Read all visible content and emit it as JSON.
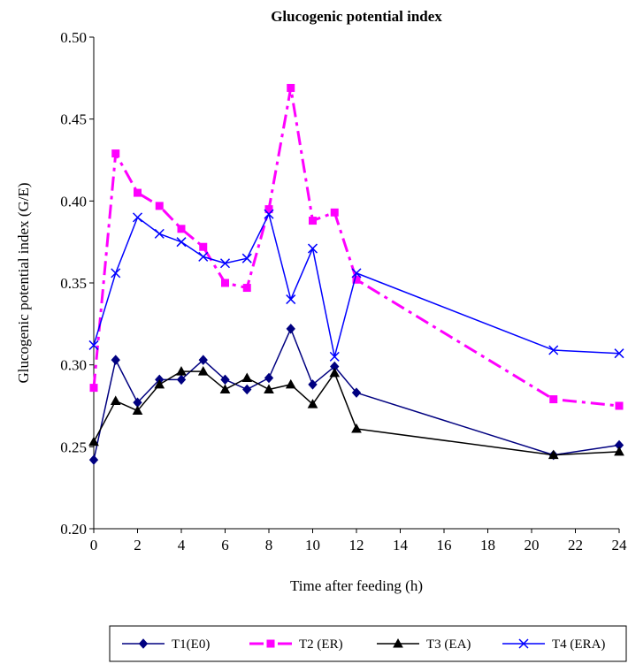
{
  "chart_data": {
    "type": "line",
    "title": "Glucogenic potential index",
    "xlabel": "Time after feeding (h)",
    "ylabel": "Glucogenic potential index (G/E)",
    "x": [
      0,
      1,
      2,
      3,
      4,
      5,
      6,
      7,
      8,
      9,
      10,
      11,
      12,
      21,
      24
    ],
    "xlim": [
      0,
      24
    ],
    "xticks": [
      0,
      2,
      4,
      6,
      8,
      10,
      12,
      14,
      16,
      18,
      20,
      22,
      24
    ],
    "xtick_labels": [
      "0",
      "2",
      "4",
      "6",
      "8",
      "10",
      "12",
      "14",
      "16",
      "18",
      "20",
      "22",
      "24"
    ],
    "ylim": [
      0.2,
      0.5
    ],
    "yticks": [
      0.2,
      0.25,
      0.3,
      0.35,
      0.4,
      0.45,
      0.5
    ],
    "ytick_labels": [
      "0.20",
      "0.25",
      "0.30",
      "0.35",
      "0.40",
      "0.45",
      "0.50"
    ],
    "grid": false,
    "legend_position": "bottom",
    "series": [
      {
        "name": "T1(E0)",
        "color": "#000080",
        "marker": "diamond",
        "dash": "solid",
        "values": [
          0.242,
          0.303,
          0.277,
          0.291,
          0.291,
          0.303,
          0.291,
          0.285,
          0.292,
          0.322,
          0.288,
          0.299,
          0.283,
          0.245,
          0.251
        ]
      },
      {
        "name": "T2 (ER)",
        "color": "#FF00FF",
        "marker": "square",
        "dash": "dashdot",
        "values": [
          0.286,
          0.429,
          0.405,
          0.397,
          0.383,
          0.372,
          0.35,
          0.347,
          0.395,
          0.469,
          0.388,
          0.393,
          0.352,
          0.279,
          0.275
        ]
      },
      {
        "name": "T3 (EA)",
        "color": "#000000",
        "marker": "triangle",
        "dash": "solid",
        "values": [
          0.253,
          0.278,
          0.272,
          0.288,
          0.296,
          0.296,
          0.285,
          0.292,
          0.285,
          0.288,
          0.276,
          0.295,
          0.261,
          0.245,
          0.247
        ]
      },
      {
        "name": "T4 (ERA)",
        "color": "#0000FF",
        "marker": "x",
        "dash": "solid",
        "values": [
          0.312,
          0.356,
          0.39,
          0.38,
          0.375,
          0.366,
          0.362,
          0.365,
          0.392,
          0.34,
          0.371,
          0.305,
          0.356,
          0.309,
          0.307
        ]
      }
    ]
  }
}
